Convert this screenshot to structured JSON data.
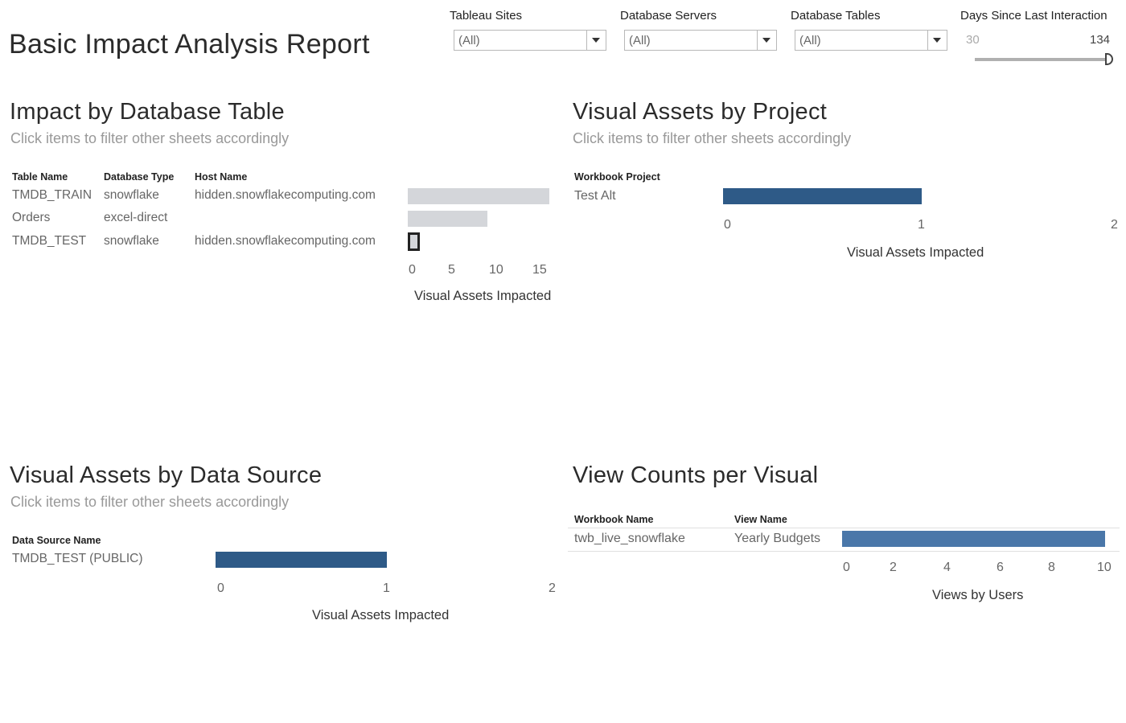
{
  "header": {
    "title": "Basic Impact Analysis Report"
  },
  "filters": {
    "sites": {
      "label": "Tableau Sites",
      "value": "(All)"
    },
    "servers": {
      "label": "Database Servers",
      "value": "(All)"
    },
    "tables": {
      "label": "Database Tables",
      "value": "(All)"
    },
    "days": {
      "label": "Days Since Last Interaction",
      "min": "30",
      "max": "134"
    }
  },
  "impact_table": {
    "title": "Impact by Database Table",
    "subtitle": "Click items to filter other sheets accordingly",
    "columns": [
      "Table Name",
      "Database Type",
      "Host Name"
    ],
    "rows": [
      {
        "table": "TMDB_TRAIN",
        "type": "snowflake",
        "host": "hidden.snowflakecomputing.com",
        "value": 16
      },
      {
        "table": "Orders",
        "type": "excel-direct",
        "host": "",
        "value": 9
      },
      {
        "table": "TMDB_TEST",
        "type": "snowflake",
        "host": "hidden.snowflakecomputing.com",
        "value": 1
      }
    ],
    "ticks": [
      "0",
      "5",
      "10",
      "15"
    ],
    "axis_title": "Visual Assets Impacted"
  },
  "visual_project": {
    "title": "Visual Assets by Project",
    "subtitle": "Click items to filter other sheets accordingly",
    "column": "Workbook Project",
    "rows": [
      {
        "project": "Test Alt",
        "value": 1
      }
    ],
    "ticks": [
      "0",
      "1",
      "2"
    ],
    "axis_title": "Visual Assets Impacted"
  },
  "data_source": {
    "title": "Visual Assets by Data Source",
    "subtitle": "Click items to filter other sheets accordingly",
    "column": "Data Source Name",
    "rows": [
      {
        "name": "TMDB_TEST (PUBLIC)",
        "value": 1
      }
    ],
    "ticks": [
      "0",
      "1",
      "2"
    ],
    "axis_title": "Visual Assets Impacted"
  },
  "view_counts": {
    "title": "View Counts per Visual",
    "columns": [
      "Workbook Name",
      "View Name"
    ],
    "rows": [
      {
        "workbook": "twb_live_snowflake",
        "view": "Yearly Budgets",
        "value": 10
      }
    ],
    "ticks": [
      "0",
      "2",
      "4",
      "6",
      "8",
      "10"
    ],
    "axis_title": "Views by Users"
  },
  "colors": {
    "bar_blue": "#2e5a87",
    "bar_blue_light": "#4a77a9",
    "bar_gray": "#d4d6da",
    "highlight_outline": "#222222"
  }
}
